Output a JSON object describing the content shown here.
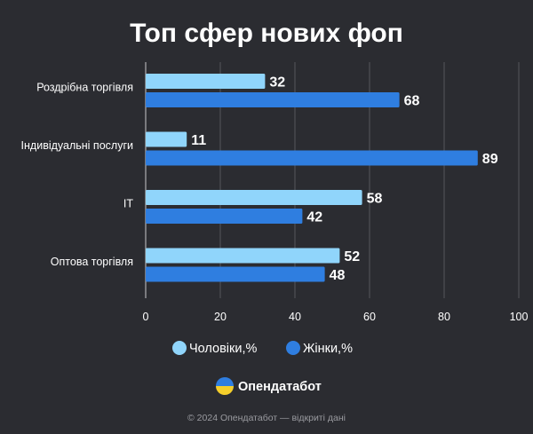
{
  "chart_data": {
    "type": "bar",
    "orientation": "horizontal",
    "title": "Топ сфер нових фоп",
    "categories": [
      "Роздрібна торгівля",
      "Індивідуальні послуги",
      "IT",
      "Оптова торгівля"
    ],
    "series": [
      {
        "name": "Чоловіки,%",
        "color": "#90d5fb",
        "values": [
          32,
          11,
          58,
          52
        ]
      },
      {
        "name": "Жінки,%",
        "color": "#2f7ee0",
        "values": [
          68,
          89,
          42,
          48
        ]
      }
    ],
    "xlim": [
      0,
      100
    ],
    "xticks": [
      0,
      20,
      40,
      60,
      80,
      100
    ],
    "grid": true,
    "legend_position": "bottom"
  },
  "branding": {
    "name": "Опендатабот",
    "logo_icon": "ukraine-flag-circle-icon"
  },
  "footer": {
    "text": "© 2024 Опендатабот — відкриті дані"
  }
}
